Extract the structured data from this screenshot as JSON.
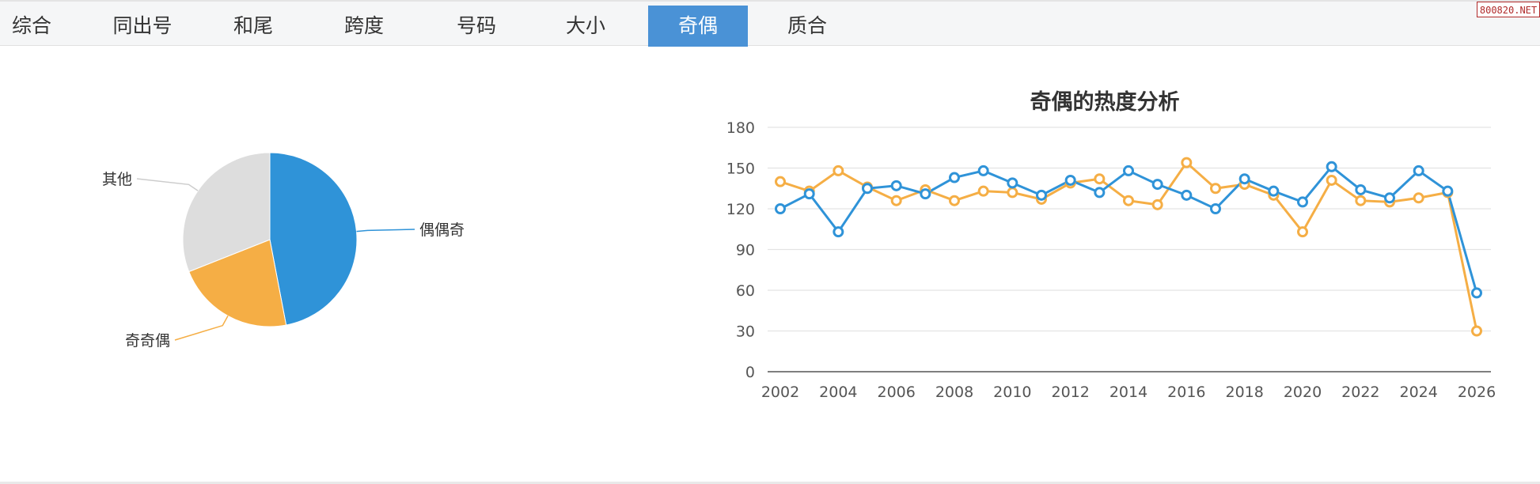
{
  "tabs": [
    {
      "label": "综合",
      "active": false
    },
    {
      "label": "同出号",
      "active": false
    },
    {
      "label": "和尾",
      "active": false
    },
    {
      "label": "跨度",
      "active": false
    },
    {
      "label": "号码",
      "active": false
    },
    {
      "label": "大小",
      "active": false
    },
    {
      "label": "奇偶",
      "active": true
    },
    {
      "label": "质合",
      "active": false
    }
  ],
  "watermark": "800820.NET",
  "colors": {
    "blue": "#2f93d8",
    "orange": "#f5ae45",
    "gray": "#dddddd",
    "active_tab": "#4a92d6"
  },
  "chart_data": [
    {
      "type": "pie",
      "slices": [
        {
          "label": "偶偶奇",
          "value": 47,
          "color": "#2f93d8"
        },
        {
          "label": "奇奇偶",
          "value": 22,
          "color": "#f5ae45"
        },
        {
          "label": "其他",
          "value": 31,
          "color": "#dddddd"
        }
      ]
    },
    {
      "type": "line",
      "title": "奇偶的热度分析",
      "x": [
        2002,
        2003,
        2004,
        2005,
        2006,
        2007,
        2008,
        2009,
        2010,
        2011,
        2012,
        2013,
        2014,
        2015,
        2016,
        2017,
        2018,
        2019,
        2020,
        2021,
        2022,
        2023,
        2024,
        2025,
        2026
      ],
      "xticks": [
        2002,
        2004,
        2006,
        2008,
        2010,
        2012,
        2014,
        2016,
        2018,
        2020,
        2022,
        2024,
        2026
      ],
      "ylim": [
        0,
        180
      ],
      "yticks": [
        0,
        30,
        60,
        90,
        120,
        150,
        180
      ],
      "grid": true,
      "series": [
        {
          "color": "#2f93d8",
          "values": [
            120,
            131,
            103,
            135,
            137,
            131,
            143,
            148,
            139,
            130,
            141,
            132,
            148,
            138,
            130,
            120,
            142,
            133,
            125,
            151,
            134,
            128,
            148,
            133,
            58
          ]
        },
        {
          "color": "#f5ae45",
          "values": [
            140,
            133,
            148,
            136,
            126,
            134,
            126,
            133,
            132,
            127,
            139,
            142,
            126,
            123,
            154,
            135,
            138,
            130,
            103,
            141,
            126,
            125,
            128,
            132,
            30
          ]
        }
      ]
    }
  ]
}
